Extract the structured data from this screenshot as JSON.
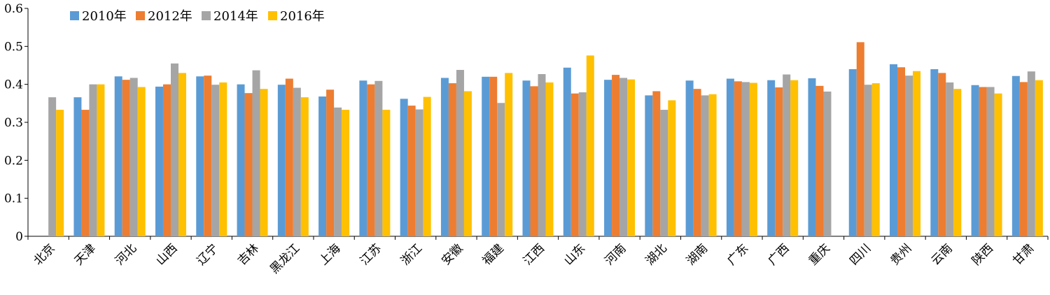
{
  "chart_data": {
    "type": "bar",
    "categories": [
      "北京",
      "天津",
      "河北",
      "山西",
      "辽宁",
      "吉林",
      "黑龙江",
      "上海",
      "江苏",
      "浙江",
      "安徽",
      "福建",
      "江西",
      "山东",
      "河南",
      "湖北",
      "湖南",
      "广东",
      "广西",
      "重庆",
      "四川",
      "贵州",
      "云南",
      "陕西",
      "甘肃"
    ],
    "series": [
      {
        "name": "2010年",
        "color": "#5b9bd5",
        "values": [
          null,
          0.366,
          0.421,
          0.394,
          0.421,
          0.4,
          0.399,
          0.368,
          0.41,
          0.362,
          0.417,
          0.42,
          0.41,
          0.444,
          0.412,
          0.371,
          0.41,
          0.415,
          0.411,
          0.416,
          0.44,
          0.453,
          0.44,
          0.398,
          0.422
        ]
      },
      {
        "name": "2012年",
        "color": "#ed7d31",
        "values": [
          null,
          0.333,
          0.412,
          0.4,
          0.423,
          0.377,
          0.415,
          0.386,
          0.4,
          0.344,
          0.403,
          0.42,
          0.395,
          0.376,
          0.425,
          0.382,
          0.388,
          0.408,
          0.392,
          0.396,
          0.511,
          0.445,
          0.43,
          0.393,
          0.406
        ]
      },
      {
        "name": "2014年",
        "color": "#a5a5a5",
        "values": [
          0.366,
          0.4,
          0.417,
          0.455,
          0.399,
          0.437,
          0.391,
          0.339,
          0.409,
          0.334,
          0.438,
          0.351,
          0.427,
          0.379,
          0.417,
          0.333,
          0.371,
          0.406,
          0.426,
          0.381,
          0.399,
          0.423,
          0.405,
          0.393,
          0.434
        ]
      },
      {
        "name": "2016年",
        "color": "#ffc000",
        "values": [
          0.333,
          0.4,
          0.393,
          0.43,
          0.405,
          0.388,
          0.366,
          0.333,
          0.333,
          0.367,
          0.382,
          0.43,
          0.405,
          0.476,
          0.413,
          0.358,
          0.374,
          0.404,
          0.411,
          null,
          0.403,
          0.435,
          0.388,
          0.376,
          0.411
        ]
      }
    ],
    "ylim": [
      0,
      0.6
    ],
    "yticks": [
      "0",
      "0.1",
      "0.2",
      "0.3",
      "0.4",
      "0.5",
      "0.6"
    ],
    "legend_position": "top-left",
    "grid": false
  }
}
